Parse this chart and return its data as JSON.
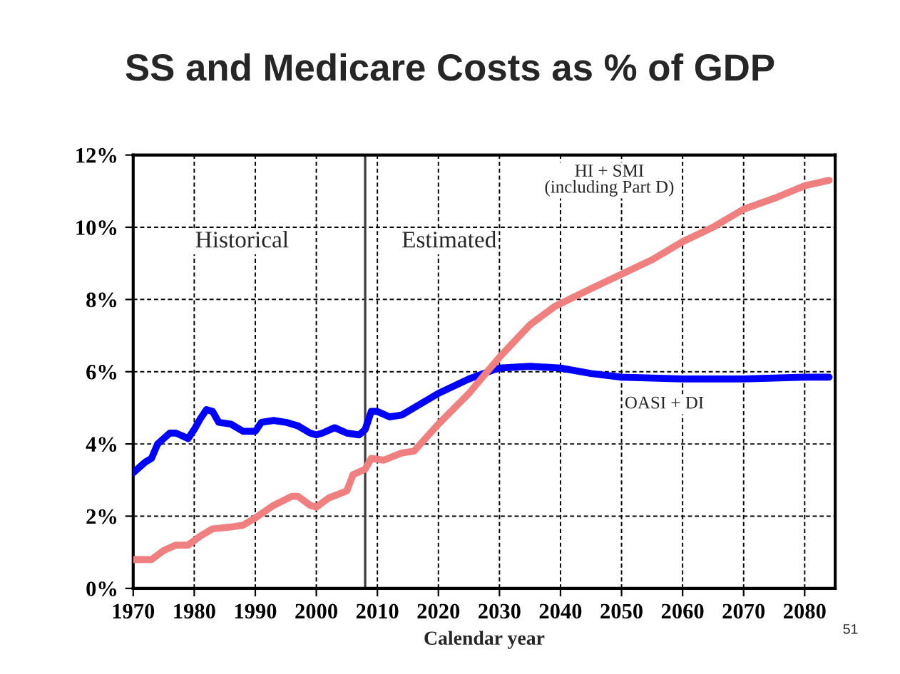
{
  "chart_data": {
    "type": "line",
    "title": "SS and Medicare Costs as % of GDP",
    "xlabel": "Calendar year",
    "xlim": [
      1970,
      2085
    ],
    "xticks": [
      1970,
      1980,
      1990,
      2000,
      2010,
      2020,
      2030,
      2040,
      2050,
      2060,
      2070,
      2080
    ],
    "ylim": [
      0,
      12
    ],
    "yticks": [
      {
        "value": 0,
        "label": "0%"
      },
      {
        "value": 2,
        "label": "2%"
      },
      {
        "value": 4,
        "label": "4%"
      },
      {
        "value": 6,
        "label": "6%"
      },
      {
        "value": 8,
        "label": "8%"
      },
      {
        "value": 10,
        "label": "10%"
      },
      {
        "value": 12,
        "label": "12%"
      }
    ],
    "grid": true,
    "legend": false,
    "marker": "none",
    "line_style": "solid",
    "series": [
      {
        "name": "OASI + DI",
        "color": "#0000ff",
        "x": [
          1970,
          1972,
          1973,
          1974,
          1976,
          1977,
          1979,
          1980,
          1981,
          1982,
          1983,
          1984,
          1986,
          1988,
          1990,
          1991,
          1993,
          1995,
          1997,
          1999,
          2000,
          2001,
          2003,
          2005,
          2007,
          2008,
          2009,
          2010,
          2012,
          2014,
          2016,
          2020,
          2025,
          2029,
          2030,
          2035,
          2040,
          2045,
          2050,
          2060,
          2070,
          2080,
          2084
        ],
        "values": [
          3.2,
          3.5,
          3.6,
          4.0,
          4.3,
          4.3,
          4.15,
          4.4,
          4.7,
          4.95,
          4.9,
          4.6,
          4.55,
          4.35,
          4.35,
          4.6,
          4.65,
          4.6,
          4.5,
          4.3,
          4.25,
          4.3,
          4.45,
          4.3,
          4.25,
          4.4,
          4.9,
          4.9,
          4.75,
          4.8,
          5.0,
          5.4,
          5.8,
          6.05,
          6.1,
          6.15,
          6.1,
          5.95,
          5.85,
          5.8,
          5.8,
          5.85,
          5.85
        ]
      },
      {
        "name": "HI + SMI\n(including Part D)",
        "color": "#f08080",
        "x": [
          1970,
          1973,
          1975,
          1977,
          1979,
          1981,
          1983,
          1986,
          1988,
          1990,
          1993,
          1996,
          1997,
          1999,
          2000,
          2002,
          2005,
          2006,
          2008,
          2009,
          2011,
          2014,
          2016,
          2020,
          2025,
          2028,
          2030,
          2035,
          2039,
          2045,
          2050,
          2055,
          2060,
          2065,
          2070,
          2075,
          2080,
          2084
        ],
        "values": [
          0.8,
          0.8,
          1.05,
          1.2,
          1.2,
          1.45,
          1.65,
          1.7,
          1.75,
          1.95,
          2.3,
          2.55,
          2.55,
          2.3,
          2.25,
          2.5,
          2.7,
          3.15,
          3.3,
          3.6,
          3.55,
          3.75,
          3.8,
          4.55,
          5.4,
          6.0,
          6.4,
          7.3,
          7.8,
          8.3,
          8.7,
          9.1,
          9.6,
          10.0,
          10.5,
          10.8,
          11.15,
          11.3
        ]
      }
    ],
    "ref_lines": [
      {
        "axis": "x",
        "value": 2008,
        "color": "#404040",
        "line_style": "solid"
      }
    ],
    "annotations": [
      "Historical",
      "Estimated",
      "51"
    ]
  }
}
